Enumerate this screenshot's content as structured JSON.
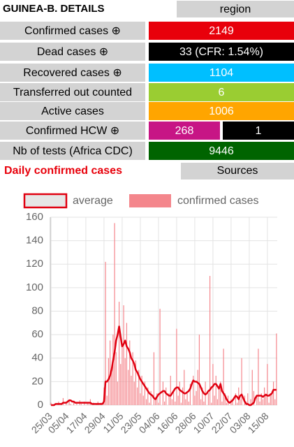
{
  "header": {
    "title": "GUINEA-B. DETAILS",
    "button": "region"
  },
  "rows": [
    {
      "label": "Confirmed cases ⊕",
      "values": [
        "2149"
      ],
      "colors": [
        "#e8000b"
      ]
    },
    {
      "label": "Dead cases ⊕",
      "values": [
        "33 (CFR: 1.54%)"
      ],
      "colors": [
        "#000000"
      ]
    },
    {
      "label": "Recovered cases ⊕",
      "values": [
        "1104"
      ],
      "colors": [
        "#00bfff"
      ]
    },
    {
      "label": "Transferred out counted",
      "values": [
        "6"
      ],
      "colors": [
        "#9acd32"
      ]
    },
    {
      "label": "Active cases",
      "values": [
        "1006"
      ],
      "colors": [
        "#ffa500"
      ]
    },
    {
      "label": "Confirmed HCW ⊕",
      "values": [
        "268",
        "1"
      ],
      "colors": [
        "#c71585",
        "#000000"
      ]
    },
    {
      "label": "Nb of tests (Africa CDC)",
      "values": [
        "9446"
      ],
      "colors": [
        "#006400"
      ]
    }
  ],
  "section": {
    "title": "Daily confirmed cases",
    "button": "Sources"
  },
  "chart_data": {
    "type": "bar",
    "categories": [
      "25/03",
      null,
      null,
      null,
      null,
      null,
      null,
      null,
      null,
      null,
      null,
      "05/04",
      null,
      null,
      null,
      null,
      null,
      null,
      null,
      null,
      null,
      null,
      null,
      "17/04",
      null,
      null,
      null,
      null,
      null,
      null,
      null,
      null,
      null,
      null,
      null,
      "29/04",
      null,
      null,
      null,
      null,
      null,
      null,
      null,
      null,
      null,
      null,
      null,
      "11/05",
      null,
      null,
      null,
      null,
      null,
      null,
      null,
      null,
      null,
      null,
      null,
      "23/05",
      null,
      null,
      null,
      null,
      null,
      null,
      null,
      null,
      null,
      null,
      null,
      "04/06",
      null,
      null,
      null,
      null,
      null,
      null,
      null,
      null,
      null,
      null,
      null,
      "16/06",
      null,
      null,
      null,
      null,
      null,
      null,
      null,
      null,
      null,
      null,
      null,
      "28/06",
      null,
      null,
      null,
      null,
      null,
      null,
      null,
      null,
      null,
      null,
      null,
      "10/07",
      null,
      null,
      null,
      null,
      null,
      null,
      null,
      null,
      null,
      null,
      null,
      "22/07",
      null,
      null,
      null,
      null,
      null,
      null,
      null,
      null,
      null,
      null,
      null,
      "03/08",
      null,
      null,
      null,
      null,
      null,
      null,
      null,
      null,
      null,
      null,
      null,
      "15/08",
      null,
      null,
      null,
      null,
      null,
      null
    ],
    "series": [
      {
        "name": "average",
        "type": "line",
        "color": "#e00010",
        "values": [
          0,
          0,
          0,
          1,
          1,
          1,
          1,
          1,
          2,
          2,
          2,
          3,
          4,
          4,
          3,
          3,
          2,
          2,
          2,
          2,
          2,
          2,
          2,
          2,
          2,
          2,
          2,
          1,
          1,
          1,
          1,
          1,
          1,
          1,
          1,
          3,
          20,
          20,
          22,
          25,
          30,
          38,
          45,
          55,
          60,
          67,
          58,
          50,
          52,
          55,
          50,
          48,
          45,
          40,
          38,
          35,
          30,
          28,
          25,
          22,
          20,
          18,
          16,
          14,
          12,
          10,
          9,
          8,
          6,
          5,
          7,
          9,
          10,
          11,
          12,
          12,
          10,
          9,
          8,
          8,
          10,
          12,
          14,
          15,
          15,
          13,
          12,
          11,
          10,
          10,
          11,
          12,
          14,
          18,
          21,
          20,
          20,
          19,
          18,
          15,
          12,
          10,
          9,
          10,
          12,
          13,
          15,
          16,
          18,
          18,
          16,
          14,
          18,
          12,
          10,
          8,
          5,
          3,
          2,
          3,
          4,
          6,
          8,
          7,
          5,
          8,
          9,
          6,
          3,
          1,
          1,
          0,
          0,
          1,
          2,
          6,
          8,
          8,
          8,
          8,
          7,
          8,
          9,
          8,
          8,
          9,
          10,
          13,
          13,
          13
        ]
      },
      {
        "name": "confirmed cases",
        "type": "bar",
        "color": "#f4868c",
        "values": [
          2,
          0,
          0,
          1,
          0,
          3,
          0,
          1,
          6,
          0,
          2,
          0,
          5,
          1,
          0,
          3,
          0,
          2,
          0,
          4,
          1,
          0,
          3,
          0,
          2,
          1,
          5,
          0,
          2,
          0,
          1,
          3,
          0,
          2,
          0,
          15,
          122,
          8,
          40,
          55,
          30,
          60,
          155,
          45,
          20,
          88,
          35,
          50,
          85,
          40,
          70,
          30,
          55,
          25,
          45,
          20,
          38,
          15,
          30,
          10,
          25,
          8,
          20,
          5,
          15,
          2,
          12,
          0,
          45,
          5,
          10,
          2,
          82,
          0,
          20,
          3,
          15,
          0,
          10,
          25,
          5,
          12,
          3,
          65,
          8,
          20,
          2,
          15,
          30,
          5,
          10,
          3,
          18,
          0,
          25,
          8,
          12,
          30,
          60,
          5,
          15,
          3,
          20,
          0,
          10,
          110,
          2,
          35,
          8,
          25,
          5,
          15,
          20,
          3,
          48,
          10,
          2,
          8,
          0,
          5,
          3,
          0,
          10,
          2,
          15,
          5,
          40,
          0,
          8,
          3,
          10,
          0,
          5,
          30,
          12,
          0,
          8,
          48,
          3,
          10,
          5,
          15,
          8,
          35,
          2,
          10,
          12,
          20,
          5,
          61
        ]
      }
    ],
    "ylim": [
      0,
      160
    ],
    "yticks": [
      0,
      20,
      40,
      60,
      80,
      100,
      120,
      140,
      160
    ],
    "grid": true
  }
}
